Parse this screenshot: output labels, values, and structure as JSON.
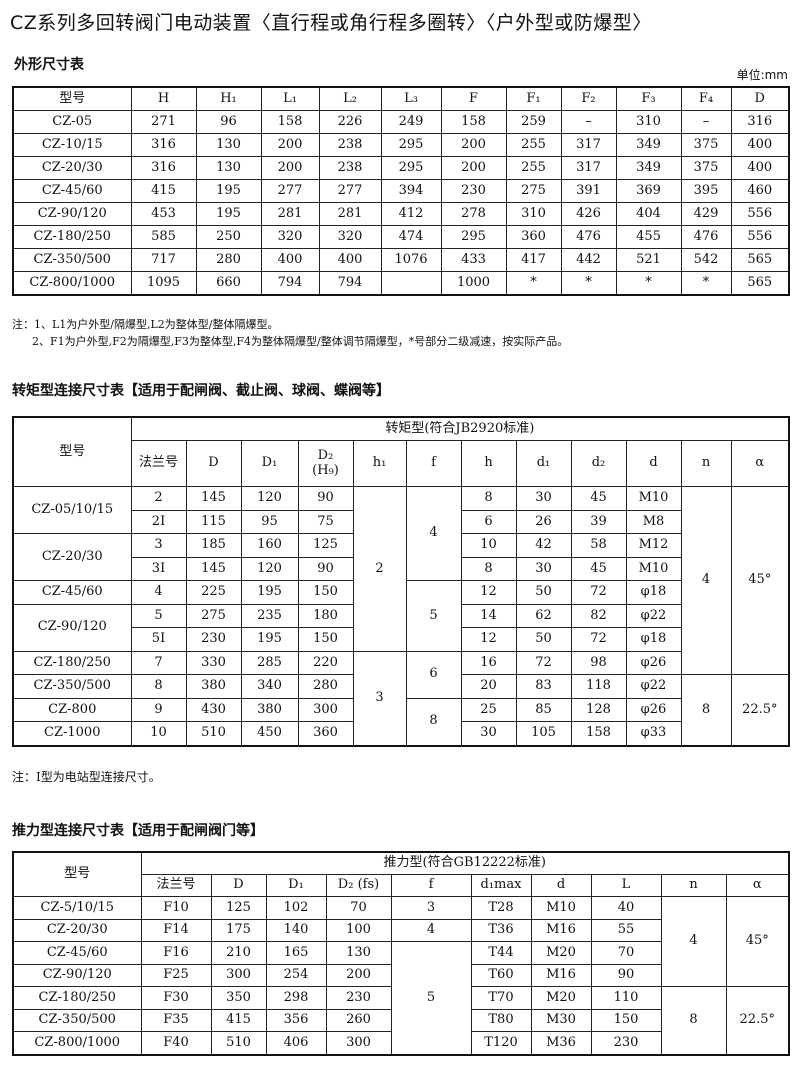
{
  "title": "CZ系列多回转阀门电动装置〈直行程或角行程多圈转〉〈户外型或防爆型〉",
  "outline": {
    "heading": "外形尺寸表",
    "unit": "单位:mm",
    "columns": [
      "型号",
      "H",
      "H₁",
      "L₁",
      "L₂",
      "L₃",
      "F",
      "F₁",
      "F₂",
      "F₃",
      "F₄",
      "D"
    ],
    "rows": [
      [
        "CZ-05",
        "271",
        "96",
        "158",
        "226",
        "249",
        "158",
        "259",
        "–",
        "310",
        "–",
        "316"
      ],
      [
        "CZ-10/15",
        "316",
        "130",
        "200",
        "238",
        "295",
        "200",
        "255",
        "317",
        "349",
        "375",
        "400"
      ],
      [
        "CZ-20/30",
        "316",
        "130",
        "200",
        "238",
        "295",
        "200",
        "255",
        "317",
        "349",
        "375",
        "400"
      ],
      [
        "CZ-45/60",
        "415",
        "195",
        "277",
        "277",
        "394",
        "230",
        "275",
        "391",
        "369",
        "395",
        "460"
      ],
      [
        "CZ-90/120",
        "453",
        "195",
        "281",
        "281",
        "412",
        "278",
        "310",
        "426",
        "404",
        "429",
        "556"
      ],
      [
        "CZ-180/250",
        "585",
        "250",
        "320",
        "320",
        "474",
        "295",
        "360",
        "476",
        "455",
        "476",
        "556"
      ],
      [
        "CZ-350/500",
        "717",
        "280",
        "400",
        "400",
        "1076",
        "433",
        "417",
        "442",
        "521",
        "542",
        "565"
      ],
      [
        "CZ-800/1000",
        "1095",
        "660",
        "794",
        "794",
        "",
        "1000",
        "*",
        "*",
        "*",
        "*",
        "565"
      ]
    ],
    "notes": [
      "注：1、L1为户外型/隔爆型,L2为整体型/整体隔爆型。",
      "2、F1为户外型,F2为隔爆型,F3为整体型,F4为整体隔爆型/整体调节隔爆型，*号部分二级减速，按实际产品。"
    ]
  },
  "torque": {
    "heading": "转矩型连接尺寸表【适用于配闸阀、截止阀、球阀、蝶阀等】",
    "model_header": "型号",
    "group_header": "转矩型(符合JB2920标准)",
    "columns": [
      "法兰号",
      "D",
      "D₁",
      "D₂\n(H₉)",
      "h₁",
      "f",
      "h",
      "d₁",
      "d₂",
      "d",
      "n",
      "α"
    ],
    "rows": [
      [
        "CZ-05/10/15",
        "2",
        "145",
        "120",
        "90",
        "2",
        "4",
        "8",
        "30",
        "45",
        "M10",
        "4",
        "45°"
      ],
      [
        null,
        "2I",
        "115",
        "95",
        "75",
        null,
        null,
        "6",
        "26",
        "39",
        "M8",
        null,
        null
      ],
      [
        "CZ-20/30",
        "3",
        "185",
        "160",
        "125",
        null,
        null,
        "10",
        "42",
        "58",
        "M12",
        null,
        null
      ],
      [
        null,
        "3I",
        "145",
        "120",
        "90",
        null,
        null,
        "8",
        "30",
        "45",
        "M10",
        null,
        null
      ],
      [
        "CZ-45/60",
        "4",
        "225",
        "195",
        "150",
        null,
        "5",
        "12",
        "50",
        "72",
        "φ18",
        null,
        null
      ],
      [
        "CZ-90/120",
        "5",
        "275",
        "235",
        "180",
        null,
        null,
        "14",
        "62",
        "82",
        "φ22",
        null,
        null
      ],
      [
        null,
        "5I",
        "230",
        "195",
        "150",
        null,
        null,
        "12",
        "50",
        "72",
        "φ18",
        null,
        null
      ],
      [
        "CZ-180/250",
        "7",
        "330",
        "285",
        "220",
        "3",
        "6",
        "16",
        "72",
        "98",
        "φ26",
        null,
        null
      ],
      [
        "CZ-350/500",
        "8",
        "380",
        "340",
        "280",
        null,
        null,
        "20",
        "83",
        "118",
        "φ22",
        "8",
        "22.5°"
      ],
      [
        "CZ-800",
        "9",
        "430",
        "380",
        "300",
        null,
        "8",
        "25",
        "85",
        "128",
        "φ26",
        null,
        null
      ],
      [
        "CZ-1000",
        "10",
        "510",
        "450",
        "360",
        null,
        null,
        "30",
        "105",
        "158",
        "φ33",
        null,
        null
      ]
    ],
    "note": "注：I型为电站型连接尺寸。"
  },
  "thrust": {
    "heading": "推力型连接尺寸表【适用于配闸阀门等】",
    "model_header": "型号",
    "group_header": "推力型(符合GB12222标准)",
    "columns": [
      "法兰号",
      "D",
      "D₁",
      "D₂ (fs)",
      "f",
      "d₁max",
      "d",
      "L",
      "n",
      "α"
    ],
    "rows": [
      [
        "CZ-5/10/15",
        "F10",
        "125",
        "102",
        "70",
        "3",
        "T28",
        "M10",
        "40",
        "4",
        "45°"
      ],
      [
        "CZ-20/30",
        "F14",
        "175",
        "140",
        "100",
        "4",
        "T36",
        "M16",
        "55",
        null,
        null
      ],
      [
        "CZ-45/60",
        "F16",
        "210",
        "165",
        "130",
        "5",
        "T44",
        "M20",
        "70",
        null,
        null
      ],
      [
        "CZ-90/120",
        "F25",
        "300",
        "254",
        "200",
        null,
        "T60",
        "M16",
        "90",
        null,
        null
      ],
      [
        "CZ-180/250",
        "F30",
        "350",
        "298",
        "230",
        null,
        "T70",
        "M20",
        "110",
        "8",
        "22.5°"
      ],
      [
        "CZ-350/500",
        "F35",
        "415",
        "356",
        "260",
        null,
        "T80",
        "M30",
        "150",
        null,
        null
      ],
      [
        "CZ-800/1000",
        "F40",
        "510",
        "406",
        "300",
        null,
        "T120",
        "M36",
        "230",
        null,
        null
      ]
    ]
  }
}
